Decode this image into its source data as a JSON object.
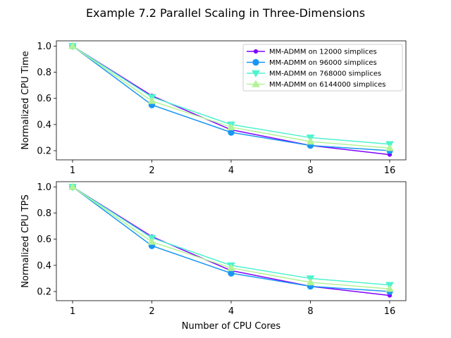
{
  "figure": {
    "title": "Example 7.2 Parallel Scaling in Three-Dimensions"
  },
  "chart_data": [
    {
      "type": "line",
      "title": "",
      "xlabel": "",
      "ylabel": "Normalized CPU Time",
      "x_scale": "log2",
      "categories": [
        "1",
        "2",
        "4",
        "8",
        "16"
      ],
      "x": [
        1,
        2,
        4,
        8,
        16
      ],
      "ylim": [
        0.13,
        1.04
      ],
      "yticks": [
        "0.2",
        "0.4",
        "0.6",
        "0.8",
        "1.0"
      ],
      "ytick_values": [
        0.2,
        0.4,
        0.6,
        0.8,
        1.0
      ],
      "legend": "top-right",
      "grid": false,
      "series": [
        {
          "name": "MM-ADMM on 12000 simplices",
          "color": "#8000ff",
          "marker": "small-circle",
          "values": [
            1.0,
            0.62,
            0.36,
            0.24,
            0.17
          ]
        },
        {
          "name": "MM-ADMM on 96000 simplices",
          "color": "#1996f3",
          "marker": "circle",
          "values": [
            1.0,
            0.55,
            0.34,
            0.24,
            0.2
          ]
        },
        {
          "name": "MM-ADMM on 768000 simplices",
          "color": "#4df3ce",
          "marker": "triangle-down",
          "values": [
            1.0,
            0.61,
            0.4,
            0.3,
            0.25
          ]
        },
        {
          "name": "MM-ADMM on 6144000 simplices",
          "color": "#b2f396",
          "marker": "triangle-up",
          "values": [
            1.0,
            0.58,
            0.38,
            0.27,
            0.22
          ]
        }
      ]
    },
    {
      "type": "line",
      "title": "",
      "xlabel": "Number of CPU Cores",
      "ylabel": "Normalized CPU TPS",
      "x_scale": "log2",
      "categories": [
        "1",
        "2",
        "4",
        "8",
        "16"
      ],
      "x": [
        1,
        2,
        4,
        8,
        16
      ],
      "ylim": [
        0.13,
        1.04
      ],
      "yticks": [
        "0.2",
        "0.4",
        "0.6",
        "0.8",
        "1.0"
      ],
      "ytick_values": [
        0.2,
        0.4,
        0.6,
        0.8,
        1.0
      ],
      "grid": false,
      "series": [
        {
          "name": "MM-ADMM on 12000 simplices",
          "color": "#8000ff",
          "marker": "small-circle",
          "values": [
            1.0,
            0.62,
            0.36,
            0.24,
            0.17
          ]
        },
        {
          "name": "MM-ADMM on 96000 simplices",
          "color": "#1996f3",
          "marker": "circle",
          "values": [
            1.0,
            0.55,
            0.34,
            0.24,
            0.2
          ]
        },
        {
          "name": "MM-ADMM on 768000 simplices",
          "color": "#4df3ce",
          "marker": "triangle-down",
          "values": [
            1.0,
            0.61,
            0.4,
            0.3,
            0.25
          ]
        },
        {
          "name": "MM-ADMM on 6144000 simplices",
          "color": "#b2f396",
          "marker": "triangle-up",
          "values": [
            1.0,
            0.58,
            0.38,
            0.27,
            0.22
          ]
        }
      ]
    }
  ]
}
